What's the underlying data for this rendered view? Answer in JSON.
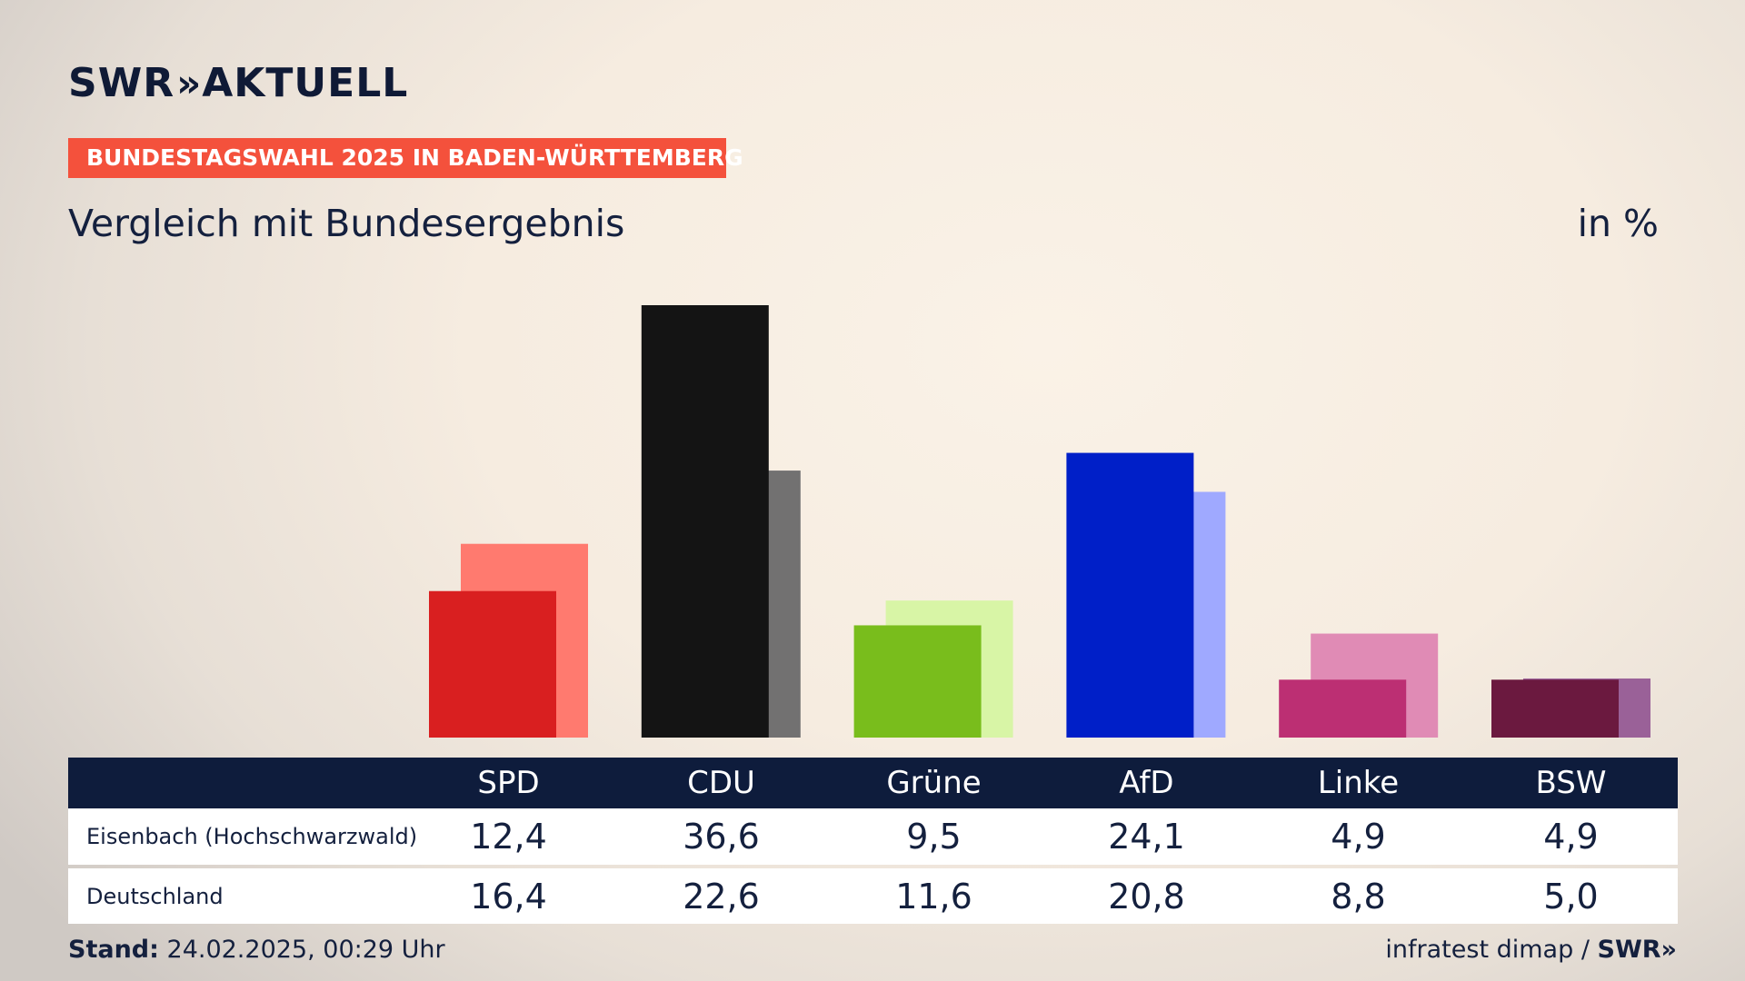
{
  "header": {
    "logo_text": "SWR",
    "logo_chevrons": "»",
    "logo_suffix": "AKTUELL",
    "kicker": "BUNDESTAGSWAHL 2025 IN BADEN-WÜRTTEMBERG",
    "subtitle": "Vergleich mit Bundesergebnis",
    "unit": "in %"
  },
  "chart_data": {
    "type": "bar",
    "title": "Vergleich mit Bundesergebnis",
    "ylabel": "in %",
    "ylim": [
      0,
      36.6
    ],
    "categories": [
      "SPD",
      "CDU",
      "Grüne",
      "AfD",
      "Linke",
      "BSW"
    ],
    "series": [
      {
        "name": "Eisenbach (Hochschwarzwald)",
        "values": [
          12.4,
          36.6,
          9.5,
          24.1,
          4.9,
          4.9
        ]
      },
      {
        "name": "Deutschland",
        "values": [
          16.4,
          22.6,
          11.6,
          20.8,
          8.8,
          5.0
        ]
      }
    ],
    "colors": {
      "primary": [
        "#d91f20",
        "#141414",
        "#79bd1c",
        "#001fc8",
        "#bc2f73",
        "#6b193f"
      ],
      "secondary": [
        "#ff7a6f",
        "#727171",
        "#d8f5a6",
        "#9fa9ff",
        "#e08bb5",
        "#9a6198"
      ]
    }
  },
  "table": {
    "headers": [
      "SPD",
      "CDU",
      "Grüne",
      "AfD",
      "Linke",
      "BSW"
    ],
    "rows": [
      {
        "label": "Eisenbach (Hochschwarzwald)",
        "values": [
          "12,4",
          "36,6",
          "9,5",
          "24,1",
          "4,9",
          "4,9"
        ]
      },
      {
        "label": "Deutschland",
        "values": [
          "16,4",
          "22,6",
          "11,6",
          "20,8",
          "8,8",
          "5,0"
        ]
      }
    ]
  },
  "footer": {
    "stand_label": "Stand:",
    "stand_value": "24.02.2025, 00:29 Uhr",
    "source": "infratest dimap /",
    "source_logo": "SWR»"
  }
}
